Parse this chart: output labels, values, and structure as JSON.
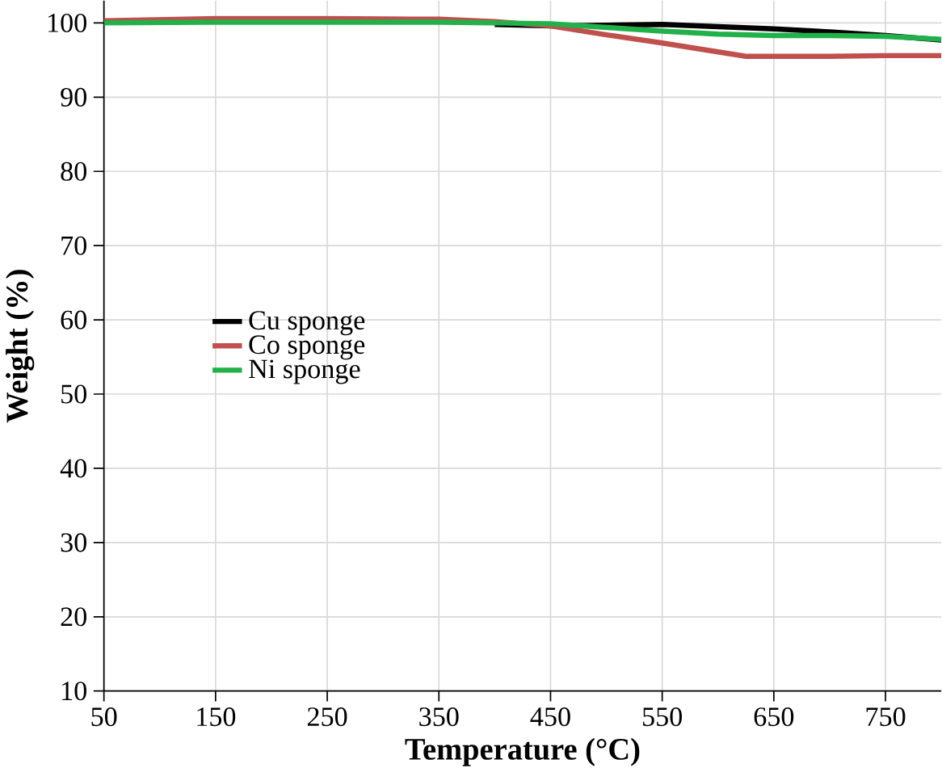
{
  "chart_data": {
    "type": "line",
    "xlabel": "Temperature (°C)",
    "ylabel": "Weight (%)",
    "xlim": [
      50,
      800
    ],
    "ylim": [
      10,
      103
    ],
    "xticks": [
      50,
      150,
      250,
      350,
      450,
      550,
      650,
      750
    ],
    "yticks": [
      10,
      20,
      30,
      40,
      50,
      60,
      70,
      80,
      90,
      100
    ],
    "grid": true,
    "legend": "left",
    "line_style": "solid",
    "series": [
      {
        "name": "Cu sponge",
        "color": "#000000",
        "x": [
          400,
          450,
          500,
          550,
          600,
          650,
          700,
          750,
          800
        ],
        "values": [
          99.8,
          99.6,
          99.7,
          99.8,
          99.5,
          99.2,
          98.8,
          98.3,
          97.7
        ]
      },
      {
        "name": "Co sponge",
        "color": "#c0504d",
        "x": [
          50,
          150,
          250,
          350,
          400,
          450,
          500,
          550,
          600,
          625,
          650,
          700,
          750,
          800
        ],
        "values": [
          100.3,
          100.6,
          100.6,
          100.5,
          100.2,
          99.6,
          98.4,
          97.3,
          96.1,
          95.5,
          95.5,
          95.5,
          95.6,
          95.6
        ]
      },
      {
        "name": "Ni sponge",
        "color": "#22b04b",
        "x": [
          50,
          150,
          250,
          350,
          400,
          450,
          500,
          550,
          600,
          650,
          700,
          750,
          800
        ],
        "values": [
          100,
          100.1,
          100.1,
          100.1,
          100,
          99.9,
          99.4,
          98.9,
          98.5,
          98.3,
          98.3,
          98.2,
          97.8
        ]
      }
    ]
  }
}
